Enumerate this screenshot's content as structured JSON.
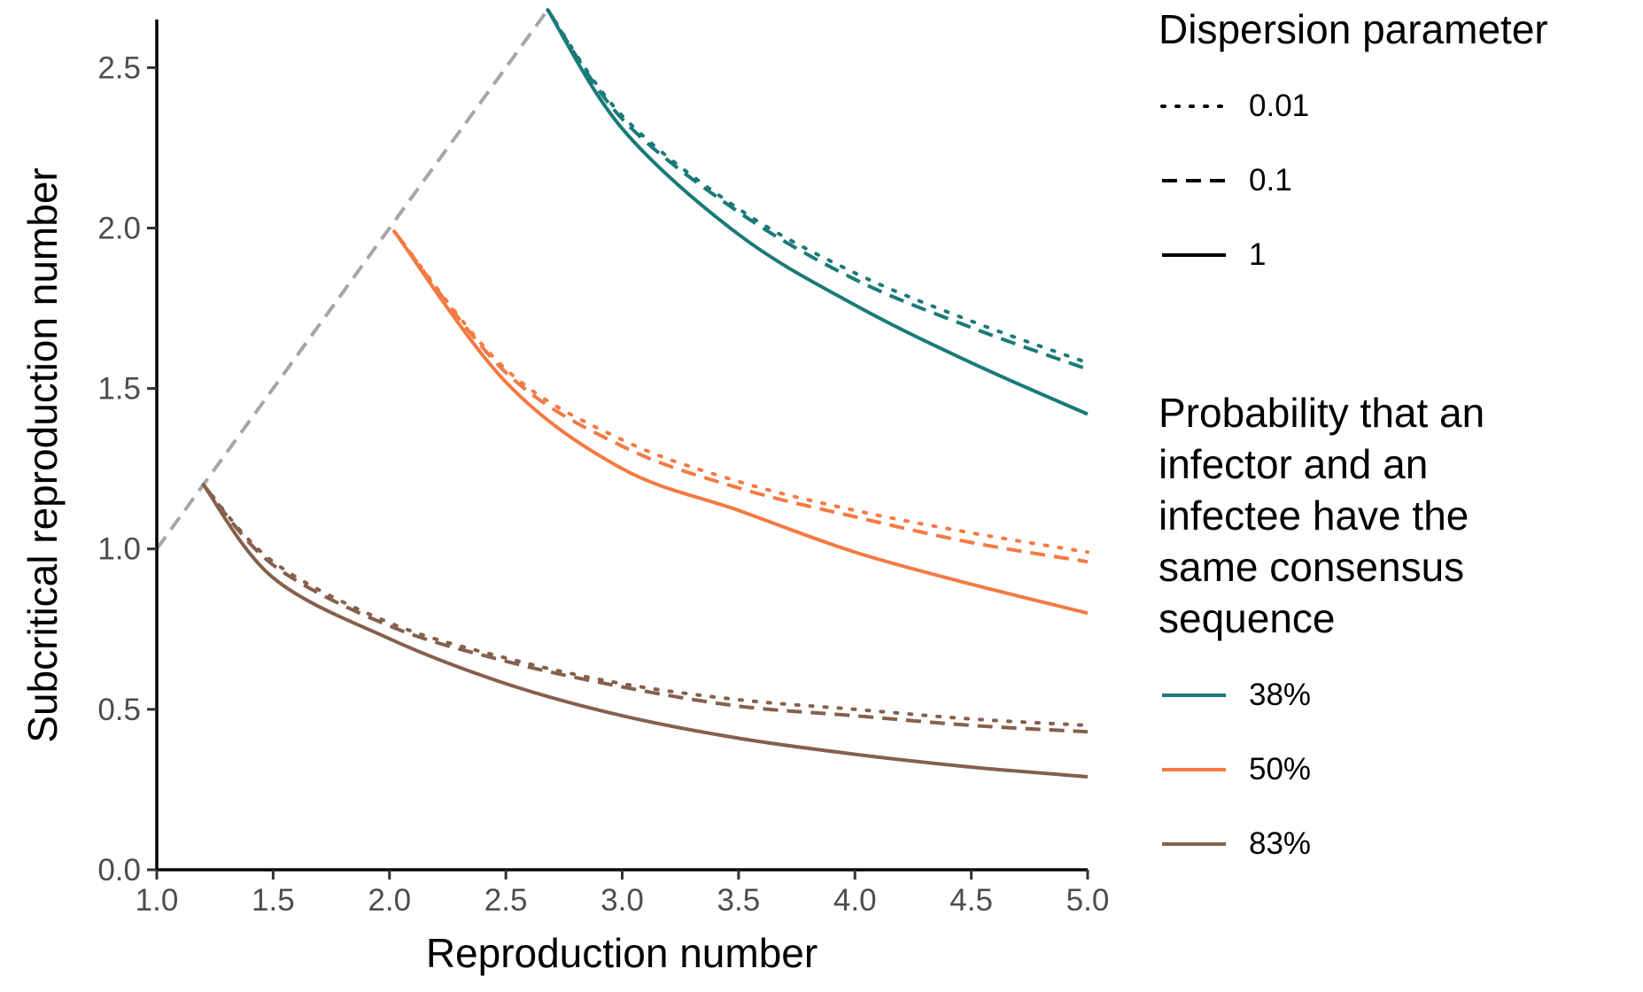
{
  "chart_data": {
    "type": "line",
    "xlabel": "Reproduction number",
    "ylabel": "Subcritical reproduction number",
    "xlim": [
      1.0,
      5.0
    ],
    "ylim": [
      0.0,
      2.65
    ],
    "x_ticks": [
      "1.0",
      "1.5",
      "2.0",
      "2.5",
      "3.0",
      "3.5",
      "4.0",
      "4.5",
      "5.0"
    ],
    "y_ticks": [
      "0.0",
      "0.5",
      "1.0",
      "1.5",
      "2.0",
      "2.5"
    ],
    "grid": false,
    "legend_placement": "right",
    "reference_line": {
      "style": "dashed",
      "color": "#a6a6a6",
      "x": [
        1.0,
        2.68
      ],
      "y": [
        1.0,
        2.68
      ]
    },
    "dispersion_legend": {
      "title": "Dispersion parameter",
      "items": [
        {
          "label": "0.01",
          "style": "dotted"
        },
        {
          "label": "0.1",
          "style": "dashed"
        },
        {
          "label": "1",
          "style": "solid"
        }
      ]
    },
    "probability_legend": {
      "title": "Probability that an infector and an infectee have the same consensus sequence",
      "title_lines": [
        "Probability that an",
        "infector and an",
        "infectee have the",
        "same consensus",
        "sequence"
      ],
      "items": [
        {
          "label": "38%",
          "color": "#1a7a78"
        },
        {
          "label": "50%",
          "color": "#f47a43"
        },
        {
          "label": "83%",
          "color": "#85604c"
        }
      ]
    },
    "series": [
      {
        "group": "38%",
        "dispersion": "0.01",
        "x": [
          2.68,
          3.0,
          3.5,
          4.0,
          4.5,
          5.0
        ],
        "y": [
          2.68,
          2.35,
          2.06,
          1.86,
          1.71,
          1.58
        ]
      },
      {
        "group": "38%",
        "dispersion": "0.1",
        "x": [
          2.68,
          3.0,
          3.5,
          4.0,
          4.5,
          5.0
        ],
        "y": [
          2.68,
          2.34,
          2.05,
          1.84,
          1.69,
          1.56
        ]
      },
      {
        "group": "38%",
        "dispersion": "1",
        "x": [
          2.68,
          3.0,
          3.5,
          4.0,
          4.5,
          5.0
        ],
        "y": [
          2.68,
          2.31,
          1.98,
          1.76,
          1.58,
          1.42
        ]
      },
      {
        "group": "50%",
        "dispersion": "0.01",
        "x": [
          2.02,
          2.5,
          3.0,
          3.5,
          4.0,
          4.5,
          5.0
        ],
        "y": [
          1.99,
          1.56,
          1.34,
          1.21,
          1.12,
          1.05,
          0.99
        ]
      },
      {
        "group": "50%",
        "dispersion": "0.1",
        "x": [
          2.02,
          2.5,
          3.0,
          3.5,
          4.0,
          4.5,
          5.0
        ],
        "y": [
          1.99,
          1.55,
          1.32,
          1.19,
          1.1,
          1.02,
          0.96
        ]
      },
      {
        "group": "50%",
        "dispersion": "1",
        "x": [
          2.02,
          2.5,
          3.0,
          3.5,
          4.0,
          4.5,
          5.0
        ],
        "y": [
          1.99,
          1.52,
          1.25,
          1.12,
          0.99,
          0.89,
          0.8
        ]
      },
      {
        "group": "83%",
        "dispersion": "0.01",
        "x": [
          1.2,
          1.5,
          2.0,
          2.5,
          3.0,
          3.5,
          4.0,
          4.5,
          5.0
        ],
        "y": [
          1.2,
          0.96,
          0.77,
          0.66,
          0.58,
          0.53,
          0.5,
          0.47,
          0.45
        ]
      },
      {
        "group": "83%",
        "dispersion": "0.1",
        "x": [
          1.2,
          1.5,
          2.0,
          2.5,
          3.0,
          3.5,
          4.0,
          4.5,
          5.0
        ],
        "y": [
          1.2,
          0.95,
          0.76,
          0.65,
          0.57,
          0.51,
          0.48,
          0.45,
          0.43
        ]
      },
      {
        "group": "83%",
        "dispersion": "1",
        "x": [
          1.2,
          1.5,
          2.0,
          2.5,
          3.0,
          3.5,
          4.0,
          4.5,
          5.0
        ],
        "y": [
          1.2,
          0.91,
          0.72,
          0.58,
          0.48,
          0.41,
          0.36,
          0.32,
          0.29
        ]
      }
    ]
  }
}
